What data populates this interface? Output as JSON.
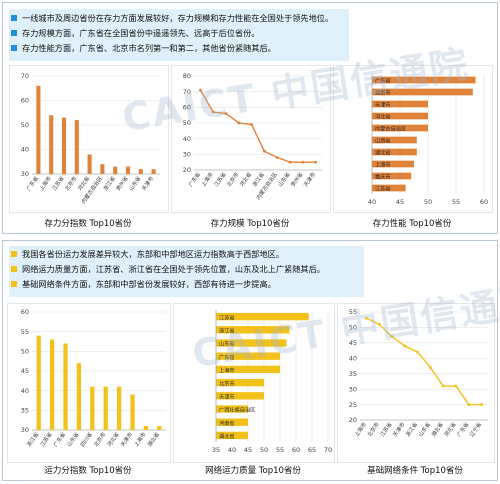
{
  "section1": {
    "bullets": [
      "一线城市及周边省份在存力方面发展较好，存力规模和存力性能在全国处于领先地位。",
      "存力规模方面，广东省在全国省份中遥遥领先、远高于后位省份。",
      "存力性能方面，广东省、北京市名列第一和第二，其他省份紧随其后。"
    ],
    "captions": [
      "存力分指数 Top10省份",
      "存力规模 Top10省份",
      "存力性能 Top10省份"
    ]
  },
  "section2": {
    "bullets": [
      "我国各省份运力发展差异较大，东部和中部地区运力指数高于西部地区。",
      "网络运力质量方面，江苏省、浙江省在全国处于领先位置，山东及北上广紧随其后。",
      "基础网络条件方面，东部和中部省份发展较好，西部有待进一步提高。"
    ],
    "captions": [
      "运力分指数 Top10省份",
      "网络运力质量 Top10省份",
      "基础网络条件 Top10省份"
    ]
  },
  "watermark": "CAICT 中国信通院",
  "colors": {
    "orange": "#e0833a",
    "yellow": "#f2c21b",
    "bullet_blue": "#1f8fd6",
    "bullet_yellow": "#f2c21b",
    "box": "#dff0fb"
  },
  "chart_data": [
    {
      "id": "c1",
      "type": "bar",
      "orientation": "vertical",
      "categories": [
        "广东省",
        "上海市",
        "江苏省",
        "北京市",
        "河北省",
        "内蒙古自治区",
        "浙江省",
        "贵州省",
        "山东省",
        "天津市"
      ],
      "values": [
        66,
        54,
        53,
        52,
        38,
        34,
        33,
        33,
        32,
        32
      ],
      "ylim": [
        30,
        70
      ],
      "yticks": [
        30,
        40,
        50,
        60,
        70
      ],
      "grid": true
    },
    {
      "id": "c2",
      "type": "line",
      "categories": [
        "广东省",
        "上海市",
        "江苏省",
        "北京市",
        "河北省",
        "浙江省",
        "内蒙古自治区",
        "山东省",
        "贵州省",
        "天津市"
      ],
      "values": [
        71,
        57,
        56,
        50,
        49,
        32,
        28,
        25,
        25,
        25
      ],
      "ylim": [
        20,
        80
      ],
      "yticks": [
        20,
        30,
        40,
        50,
        60,
        70,
        80
      ],
      "grid": true
    },
    {
      "id": "c3",
      "type": "bar",
      "orientation": "horizontal",
      "categories": [
        "广东省",
        "北京市",
        "天津市",
        "河北省",
        "内蒙古自治区",
        "山西省",
        "湖北省",
        "上海市",
        "重庆市",
        "江苏省"
      ],
      "values": [
        58.5,
        58,
        50,
        50,
        50,
        48,
        48,
        47.5,
        47,
        46
      ],
      "xlim": [
        40,
        60
      ],
      "xticks": [
        40,
        45,
        50,
        55,
        60
      ],
      "grid": true
    },
    {
      "id": "c4",
      "type": "bar",
      "orientation": "vertical",
      "categories": [
        "浙江省",
        "江苏省",
        "广东省",
        "山东省",
        "四川省",
        "北京市",
        "河北省",
        "天津市",
        "上海市",
        "湖北省"
      ],
      "values": [
        54,
        53,
        52,
        47,
        41,
        41,
        41,
        39,
        31,
        31
      ],
      "ylim": [
        30,
        60
      ],
      "yticks": [
        30,
        35,
        40,
        45,
        50,
        55,
        60
      ],
      "grid": true
    },
    {
      "id": "c5",
      "type": "bar",
      "orientation": "horizontal",
      "categories": [
        "江苏省",
        "浙江省",
        "山东省",
        "广东省",
        "上海市",
        "北京市",
        "天津市",
        "广西壮族自治区",
        "河南省",
        "湖北省"
      ],
      "values": [
        64,
        58,
        57,
        55,
        55,
        50,
        50,
        45,
        45,
        45
      ],
      "xlim": [
        35,
        70
      ],
      "xticks": [
        35,
        40,
        45,
        50,
        55,
        60,
        65,
        70
      ],
      "grid": true
    },
    {
      "id": "c6",
      "type": "line",
      "categories": [
        "上海市",
        "北京市",
        "江苏省",
        "天津市",
        "浙江省",
        "山东省",
        "湖北省",
        "河北省",
        "广东省",
        "辽宁省"
      ],
      "values": [
        53,
        51,
        47,
        44,
        42,
        37,
        31,
        31,
        25,
        25
      ],
      "ylim": [
        20,
        55
      ],
      "yticks": [
        20,
        25,
        30,
        35,
        40,
        45,
        50,
        55
      ],
      "grid": true
    }
  ]
}
